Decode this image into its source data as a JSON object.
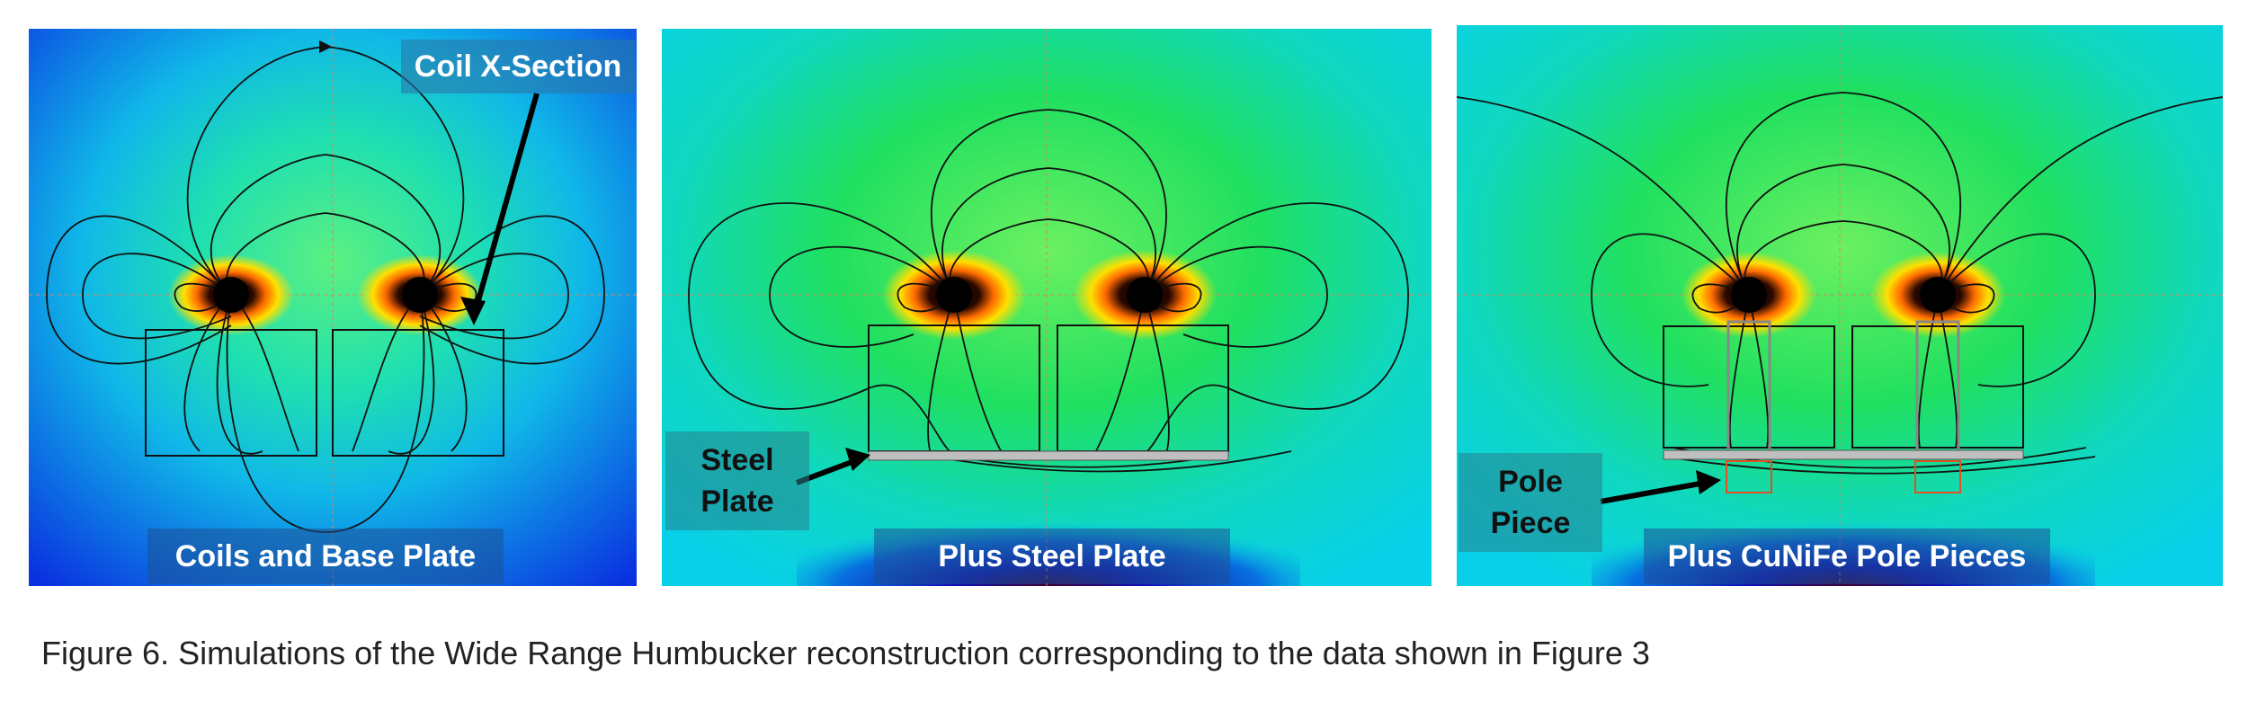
{
  "panels": [
    {
      "caption": "Coils and Base Plate"
    },
    {
      "caption": "Plus Steel Plate"
    },
    {
      "caption": "Plus CuNiFe Pole Pieces"
    }
  ],
  "annotations": {
    "coil_x_section": "Coil X-Section",
    "steel_plate": "Steel\nPlate",
    "pole_piece": "Pole\nPiece"
  },
  "figure_caption": "Figure 6. Simulations of the Wide Range Humbucker reconstruction corresponding to the data shown in Figure 3",
  "colors": {
    "field_strong": "#ffe000",
    "field_mid": "#22ee22",
    "field_weak": "#0022dd",
    "field_line": "#111111",
    "label_box": "#2a6fa0"
  }
}
